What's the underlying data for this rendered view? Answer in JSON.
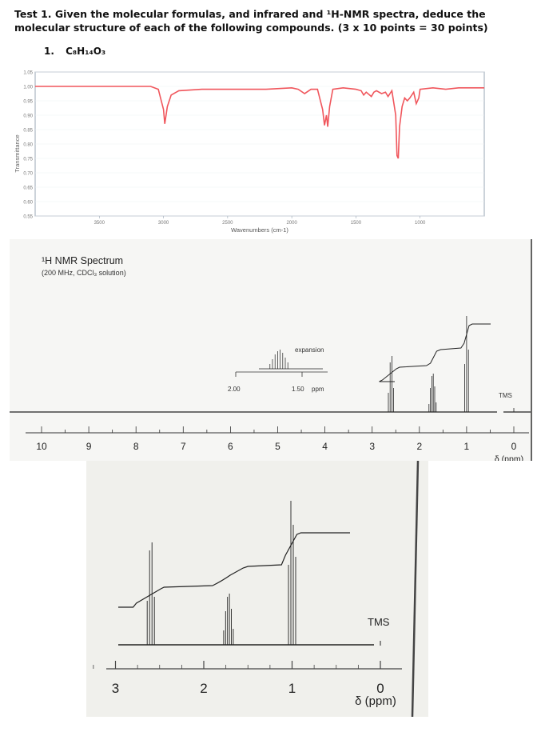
{
  "header": {
    "title": "Test 1. Given the molecular formulas, and infrared and ¹H-NMR spectra, deduce the molecular structure of each of the following compounds. (3 x 10 points = 30 points)"
  },
  "question": {
    "number": "1.",
    "formula": "C₈H₁₄O₃"
  },
  "chart_data": [
    {
      "type": "line",
      "name": "IR spectrum",
      "xlabel": "Wavenumbers (cm-1)",
      "ylabel": "Transmittance",
      "xlim": [
        4000,
        500
      ],
      "ylim": [
        0.55,
        1.05
      ],
      "xticks": [
        "3500",
        "3000",
        "2500",
        "2000",
        "1500",
        "1000"
      ],
      "yticks": [
        "1.05",
        "1.00",
        "0.95",
        "0.90",
        "0.85",
        "0.80",
        "0.75",
        "0.70",
        "0.65",
        "0.60",
        "0.55"
      ],
      "line_color": "#f0565c",
      "points": [
        [
          4000,
          1.0
        ],
        [
          3500,
          1.0
        ],
        [
          3100,
          1.0
        ],
        [
          3040,
          0.99
        ],
        [
          3000,
          0.92
        ],
        [
          2990,
          0.87
        ],
        [
          2970,
          0.93
        ],
        [
          2940,
          0.97
        ],
        [
          2880,
          0.985
        ],
        [
          2700,
          0.99
        ],
        [
          2500,
          0.99
        ],
        [
          2200,
          0.99
        ],
        [
          2000,
          0.995
        ],
        [
          1950,
          0.99
        ],
        [
          1900,
          0.975
        ],
        [
          1850,
          0.99
        ],
        [
          1800,
          0.99
        ],
        [
          1760,
          0.92
        ],
        [
          1745,
          0.865
        ],
        [
          1730,
          0.9
        ],
        [
          1720,
          0.86
        ],
        [
          1705,
          0.93
        ],
        [
          1680,
          0.99
        ],
        [
          1600,
          0.995
        ],
        [
          1500,
          0.99
        ],
        [
          1460,
          0.985
        ],
        [
          1440,
          0.97
        ],
        [
          1420,
          0.98
        ],
        [
          1380,
          0.965
        ],
        [
          1360,
          0.98
        ],
        [
          1340,
          0.985
        ],
        [
          1300,
          0.975
        ],
        [
          1270,
          0.98
        ],
        [
          1250,
          0.965
        ],
        [
          1220,
          0.985
        ],
        [
          1190,
          0.9
        ],
        [
          1180,
          0.76
        ],
        [
          1170,
          0.75
        ],
        [
          1160,
          0.86
        ],
        [
          1140,
          0.93
        ],
        [
          1120,
          0.96
        ],
        [
          1100,
          0.95
        ],
        [
          1080,
          0.96
        ],
        [
          1050,
          0.98
        ],
        [
          1030,
          0.94
        ],
        [
          1010,
          0.96
        ],
        [
          1000,
          0.99
        ],
        [
          900,
          0.995
        ],
        [
          800,
          0.99
        ],
        [
          700,
          0.995
        ],
        [
          500,
          0.995
        ]
      ]
    },
    {
      "type": "line",
      "name": "1H NMR spectrum",
      "title": "¹H NMR Spectrum",
      "subtitle": "(200 MHz, CDCl₃ solution)",
      "xlabel": "δ (ppm)",
      "xlim": [
        10,
        0
      ],
      "xticks": [
        "10",
        "9",
        "8",
        "7",
        "6",
        "5",
        "4",
        "3",
        "2",
        "1",
        "0"
      ],
      "annotations": {
        "tms": "TMS",
        "expansion": "expansion",
        "expansion_ticks": [
          "2.00",
          "1.50",
          "ppm"
        ]
      },
      "peaks": [
        {
          "shift": 2.6,
          "relative_height": 0.3,
          "multiplet": "quartet"
        },
        {
          "shift": 1.72,
          "relative_height": 0.22,
          "multiplet": "sextet"
        },
        {
          "shift": 1.0,
          "relative_height": 0.42,
          "multiplet": "triplet"
        },
        {
          "shift": 0,
          "relative_height": 0.03,
          "multiplet": "singlet"
        }
      ],
      "integral_steps": [
        {
          "from": 2.85,
          "to": 2.42,
          "rise": 2
        },
        {
          "from": 1.85,
          "to": 1.55,
          "rise": 2
        },
        {
          "from": 1.12,
          "to": 0.88,
          "rise": 3
        }
      ]
    },
    {
      "type": "line",
      "name": "1H NMR spectrum (enlarged)",
      "xlabel": "δ (ppm)",
      "xlim": [
        3.4,
        -0.2
      ],
      "xticks": [
        "3",
        "2",
        "1",
        "0"
      ],
      "annotations": {
        "tms": "TMS"
      }
    }
  ]
}
